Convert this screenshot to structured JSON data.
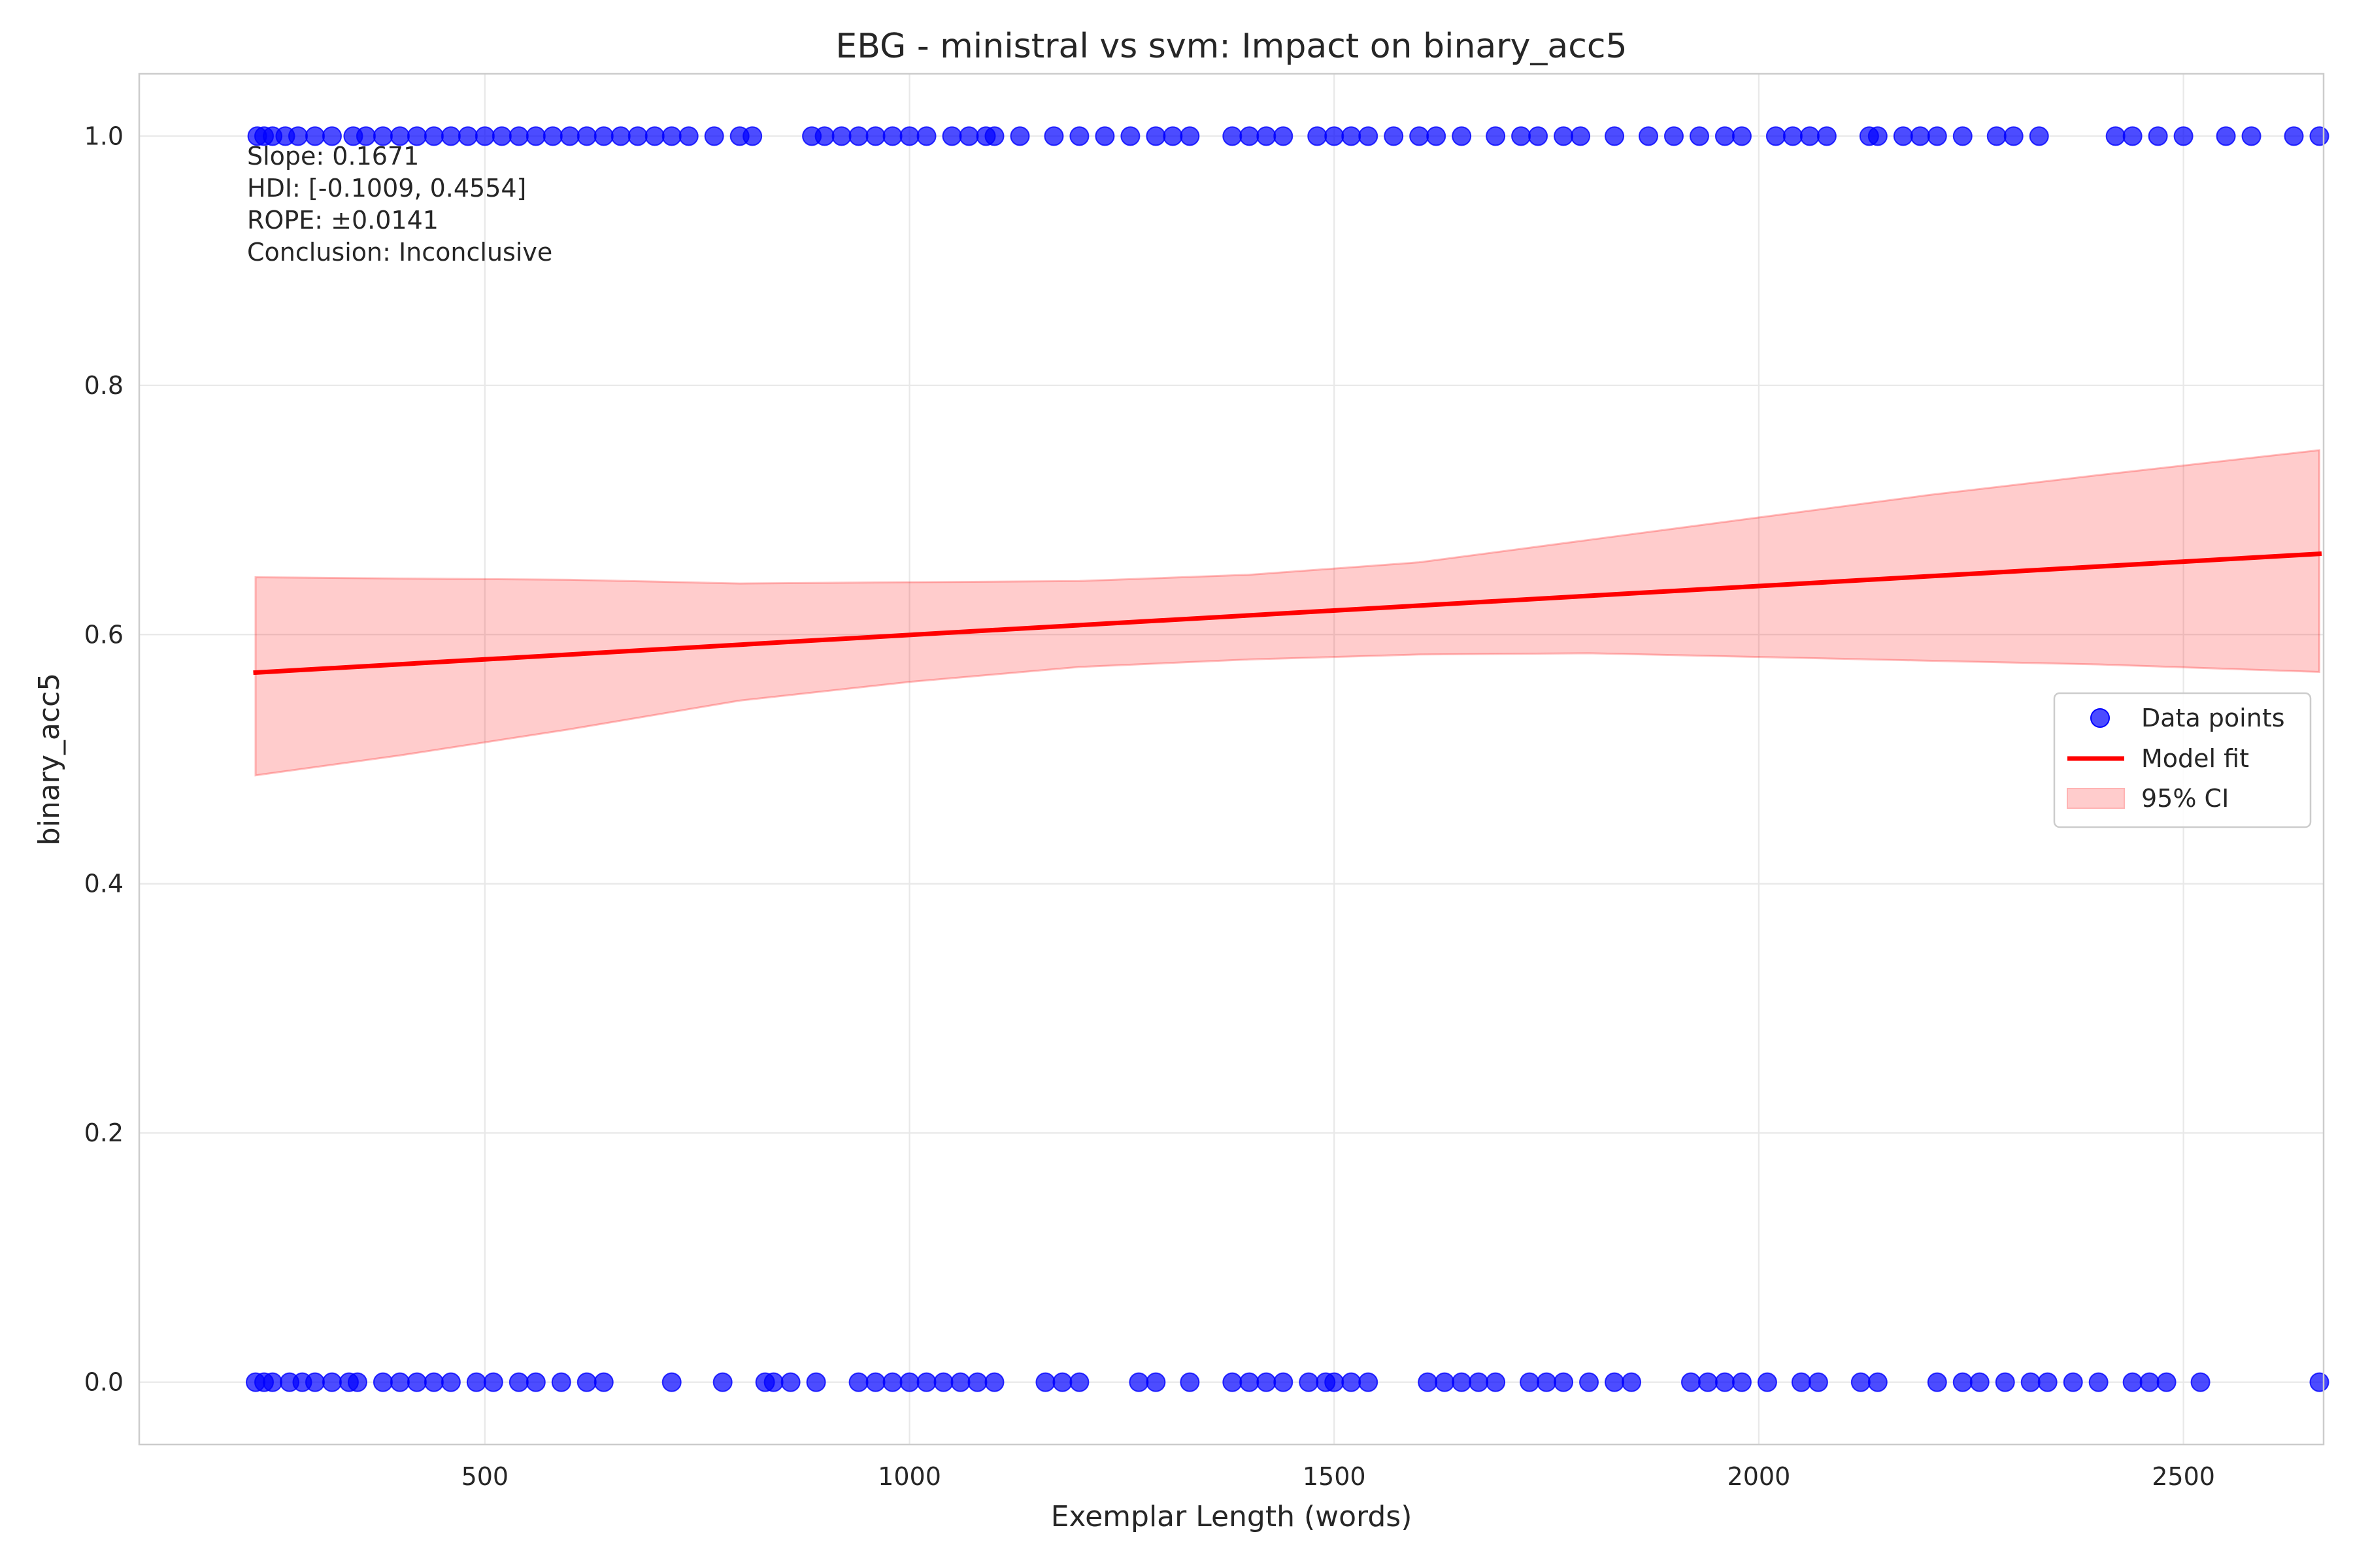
{
  "chart_data": {
    "type": "scatter",
    "title": "EBG - ministral vs svm: Impact on binary_acc5",
    "xlabel": "Exemplar Length (words)",
    "ylabel": "binary_acc5",
    "xlim": [
      93,
      2665
    ],
    "ylim": [
      -0.05,
      1.05
    ],
    "xticks": [
      500,
      1000,
      1500,
      2000,
      2500
    ],
    "yticks": [
      0.0,
      0.2,
      0.4,
      0.6,
      0.8,
      1.0
    ],
    "xtick_labels": [
      "500",
      "1000",
      "1500",
      "2000",
      "2500"
    ],
    "ytick_labels": [
      "0.0",
      "0.2",
      "0.4",
      "0.6",
      "0.8",
      "1.0"
    ],
    "grid": true,
    "legend_position": "center-right",
    "colors": {
      "points": "#0000ff",
      "fit": "#ff0000",
      "ci": "#ffb3b3"
    },
    "series": [
      {
        "name": "Data points",
        "kind": "scatter",
        "x_y1": [
          232,
          240,
          250,
          265,
          280,
          300,
          320,
          345,
          360,
          380,
          400,
          420,
          440,
          460,
          480,
          500,
          520,
          540,
          560,
          580,
          600,
          620,
          640,
          660,
          680,
          700,
          720,
          740,
          770,
          800,
          815,
          885,
          900,
          920,
          940,
          960,
          980,
          1000,
          1020,
          1050,
          1070,
          1090,
          1100,
          1130,
          1170,
          1200,
          1230,
          1260,
          1290,
          1310,
          1330,
          1380,
          1400,
          1420,
          1440,
          1480,
          1500,
          1520,
          1540,
          1570,
          1600,
          1620,
          1650,
          1690,
          1720,
          1740,
          1770,
          1790,
          1830,
          1870,
          1900,
          1930,
          1960,
          1980,
          2020,
          2040,
          2060,
          2080,
          2130,
          2140,
          2170,
          2190,
          2210,
          2240,
          2280,
          2300,
          2330,
          2420,
          2440,
          2470,
          2500,
          2550,
          2580,
          2630,
          2660
        ],
        "x_y0": [
          230,
          240,
          250,
          270,
          285,
          300,
          320,
          340,
          350,
          380,
          400,
          420,
          440,
          460,
          490,
          510,
          540,
          560,
          590,
          620,
          640,
          720,
          780,
          830,
          840,
          860,
          890,
          940,
          960,
          980,
          1000,
          1020,
          1040,
          1060,
          1080,
          1100,
          1160,
          1180,
          1200,
          1270,
          1290,
          1330,
          1380,
          1400,
          1420,
          1440,
          1470,
          1490,
          1500,
          1520,
          1540,
          1610,
          1630,
          1650,
          1670,
          1690,
          1730,
          1750,
          1770,
          1800,
          1830,
          1850,
          1920,
          1940,
          1960,
          1980,
          2010,
          2050,
          2070,
          2120,
          2140,
          2210,
          2240,
          2260,
          2290,
          2320,
          2340,
          2370,
          2400,
          2440,
          2460,
          2480,
          2520,
          2660
        ]
      },
      {
        "name": "Model fit",
        "kind": "line",
        "x": [
          230,
          2660
        ],
        "y": [
          0.5695,
          0.6648
        ]
      },
      {
        "name": "95% CI",
        "kind": "band",
        "x": [
          230,
          400,
          600,
          800,
          1000,
          1200,
          1400,
          1600,
          1800,
          2000,
          2200,
          2400,
          2660
        ],
        "lower": [
          0.487,
          0.503,
          0.524,
          0.547,
          0.562,
          0.574,
          0.58,
          0.584,
          0.585,
          0.582,
          0.579,
          0.576,
          0.57
        ],
        "upper": [
          0.646,
          0.645,
          0.644,
          0.641,
          0.642,
          0.643,
          0.648,
          0.658,
          0.676,
          0.694,
          0.712,
          0.728,
          0.748
        ]
      }
    ],
    "annotation": [
      "Slope: 0.1671",
      "HDI: [-0.1009, 0.4554]",
      "ROPE: ±0.0141",
      "Conclusion: Inconclusive"
    ]
  }
}
